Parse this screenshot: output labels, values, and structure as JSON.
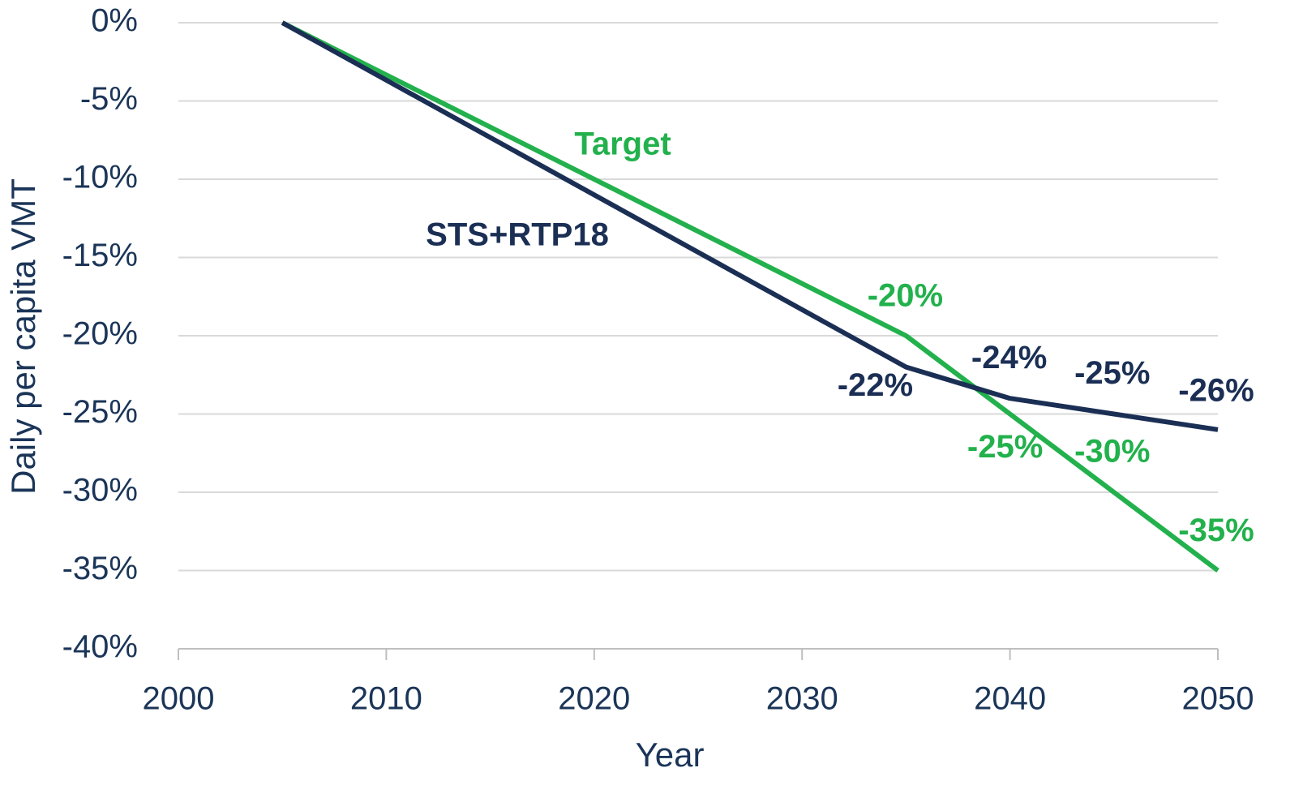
{
  "chart_data": {
    "type": "line",
    "x_label": "Year",
    "y_label": "Daily per capita VMT",
    "x": [
      2005,
      2035,
      2040,
      2045,
      2050
    ],
    "series": [
      {
        "name": "Target",
        "color": "#22b14c",
        "values": [
          0,
          -20,
          -25,
          -30,
          -35
        ],
        "value_labels": [
          null,
          "-20%",
          "-25%",
          "-30%",
          "-35%"
        ]
      },
      {
        "name": "STS+RTP18",
        "color": "#1b2f55",
        "values": [
          0,
          -22,
          -24,
          -25,
          -26
        ],
        "value_labels": [
          null,
          "-22%",
          "-24%",
          "-25%",
          "-26%"
        ]
      }
    ],
    "xlim": [
      2000,
      2050
    ],
    "xticks": [
      2000,
      2010,
      2020,
      2030,
      2040,
      2050
    ],
    "ylim": [
      -40,
      0
    ],
    "yticks": [
      {
        "value": 0,
        "label": "0%"
      },
      {
        "value": -5,
        "label": "-5%"
      },
      {
        "value": -10,
        "label": "-10%"
      },
      {
        "value": -15,
        "label": "-15%"
      },
      {
        "value": -20,
        "label": "-20%"
      },
      {
        "value": -25,
        "label": "-25%"
      },
      {
        "value": -30,
        "label": "-30%"
      },
      {
        "value": -35,
        "label": "-35%"
      },
      {
        "value": -40,
        "label": "-40%"
      }
    ],
    "grid": true
  }
}
